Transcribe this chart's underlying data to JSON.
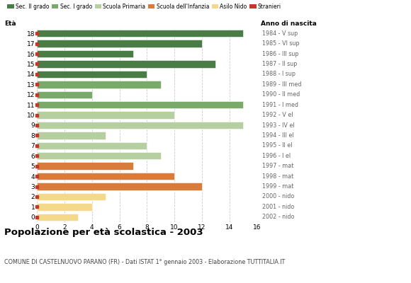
{
  "ages": [
    18,
    17,
    16,
    15,
    14,
    13,
    12,
    11,
    10,
    9,
    8,
    7,
    6,
    5,
    4,
    3,
    2,
    1,
    0
  ],
  "values": [
    15,
    12,
    7,
    13,
    8,
    9,
    4,
    15,
    10,
    15,
    5,
    8,
    9,
    7,
    10,
    12,
    5,
    4,
    3
  ],
  "bar_colors": [
    "#4a7c45",
    "#4a7c45",
    "#4a7c45",
    "#4a7c45",
    "#4a7c45",
    "#7aaa6a",
    "#7aaa6a",
    "#7aaa6a",
    "#b5cfa0",
    "#b5cfa0",
    "#b5cfa0",
    "#b5cfa0",
    "#b5cfa0",
    "#d97b3a",
    "#d97b3a",
    "#d97b3a",
    "#f5d98a",
    "#f5d98a",
    "#f5d98a"
  ],
  "right_labels": [
    "1984 - V sup",
    "1985 - VI sup",
    "1986 - III sup",
    "1987 - II sup",
    "1988 - I sup",
    "1989 - III med",
    "1990 - II med",
    "1991 - I med",
    "1992 - V el",
    "1993 - IV el",
    "1994 - III el",
    "1995 - II el",
    "1996 - I el",
    "1997 - mat",
    "1998 - mat",
    "1999 - mat",
    "2000 - nido",
    "2001 - nido",
    "2002 - nido"
  ],
  "legend_labels": [
    "Sec. II grado",
    "Sec. I grado",
    "Scuola Primaria",
    "Scuola dell'Infanzia",
    "Asilo Nido",
    "Stranieri"
  ],
  "legend_colors": [
    "#4a7c45",
    "#7aaa6a",
    "#b5cfa0",
    "#d97b3a",
    "#f5d98a",
    "#c0392b"
  ],
  "stranieri_color": "#c0392b",
  "title": "Popolazione per età scolastica - 2003",
  "subtitle": "COMUNE DI CASTELNUOVO PARANO (FR) - Dati ISTAT 1° gennaio 2003 - Elaborazione TUTTITALIA.IT",
  "eta_label": "Età",
  "anno_label": "Anno di nascita",
  "xlim": [
    0,
    16
  ],
  "xticks": [
    0,
    2,
    4,
    6,
    8,
    10,
    12,
    14,
    16
  ],
  "background_color": "#ffffff",
  "grid_color": "#cccccc"
}
